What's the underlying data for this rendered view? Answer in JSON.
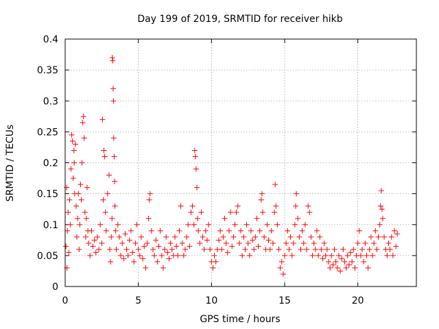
{
  "chart_data": {
    "type": "scatter",
    "title": "Day 199 of 2019, SRMTID for receiver hikb",
    "xlabel": "GPS time / hours",
    "ylabel": "SRMTID / TECUs",
    "xlim": [
      0,
      24
    ],
    "ylim": [
      0,
      0.4
    ],
    "x_ticks": [
      0,
      5,
      10,
      15,
      20
    ],
    "x_tick_labels": [
      "0",
      "5",
      "10",
      "15",
      "20"
    ],
    "y_ticks": [
      0,
      0.05,
      0.1,
      0.15,
      0.2,
      0.25,
      0.3,
      0.35,
      0.4
    ],
    "y_tick_labels": [
      "0",
      "0.05",
      "0.1",
      "0.15",
      "0.2",
      "0.25",
      "0.3",
      "0.35",
      "0.4"
    ],
    "grid": true,
    "marker": "+",
    "marker_color": "#ff0000",
    "series": [
      {
        "points": [
          [
            0.05,
            0.065
          ],
          [
            0.1,
            0.16
          ],
          [
            0.12,
            0.03
          ],
          [
            0.15,
            0.09
          ],
          [
            0.2,
            0.12
          ],
          [
            0.25,
            0.055
          ],
          [
            0.3,
            0.14
          ],
          [
            0.35,
            0.1
          ],
          [
            0.4,
            0.19
          ],
          [
            0.45,
            0.245
          ],
          [
            0.5,
            0.235
          ],
          [
            0.55,
            0.175
          ],
          [
            0.6,
            0.22
          ],
          [
            0.62,
            0.2
          ],
          [
            0.65,
            0.15
          ],
          [
            0.7,
            0.23
          ],
          [
            0.75,
            0.13
          ],
          [
            0.8,
            0.08
          ],
          [
            0.85,
            0.11
          ],
          [
            0.9,
            0.15
          ],
          [
            0.95,
            0.06
          ],
          [
            1.0,
            0.1
          ],
          [
            1.05,
            0.165
          ],
          [
            1.1,
            0.14
          ],
          [
            1.15,
            0.2
          ],
          [
            1.2,
            0.265
          ],
          [
            1.25,
            0.275
          ],
          [
            1.3,
            0.24
          ],
          [
            1.35,
            0.12
          ],
          [
            1.4,
            0.08
          ],
          [
            1.45,
            0.11
          ],
          [
            1.5,
            0.16
          ],
          [
            1.55,
            0.09
          ],
          [
            1.6,
            0.07
          ],
          [
            1.7,
            0.05
          ],
          [
            1.8,
            0.09
          ],
          [
            1.9,
            0.065
          ],
          [
            2.0,
            0.075
          ],
          [
            2.1,
            0.055
          ],
          [
            2.2,
            0.08
          ],
          [
            2.3,
            0.06
          ],
          [
            2.4,
            0.1
          ],
          [
            2.5,
            0.07
          ],
          [
            2.55,
            0.27
          ],
          [
            2.6,
            0.14
          ],
          [
            2.65,
            0.22
          ],
          [
            2.7,
            0.21
          ],
          [
            2.75,
            0.12
          ],
          [
            2.8,
            0.09
          ],
          [
            2.9,
            0.15
          ],
          [
            3.0,
            0.18
          ],
          [
            3.05,
            0.06
          ],
          [
            3.1,
            0.04
          ],
          [
            3.15,
            0.08
          ],
          [
            3.2,
            0.11
          ],
          [
            3.22,
            0.37
          ],
          [
            3.25,
            0.365
          ],
          [
            3.28,
            0.32
          ],
          [
            3.3,
            0.3
          ],
          [
            3.32,
            0.24
          ],
          [
            3.35,
            0.21
          ],
          [
            3.38,
            0.17
          ],
          [
            3.4,
            0.13
          ],
          [
            3.45,
            0.09
          ],
          [
            3.5,
            0.06
          ],
          [
            3.6,
            0.1
          ],
          [
            3.7,
            0.08
          ],
          [
            3.8,
            0.05
          ],
          [
            3.9,
            0.07
          ],
          [
            4.0,
            0.045
          ],
          [
            4.1,
            0.085
          ],
          [
            4.2,
            0.06
          ],
          [
            4.3,
            0.05
          ],
          [
            4.4,
            0.075
          ],
          [
            4.5,
            0.09
          ],
          [
            4.6,
            0.055
          ],
          [
            4.7,
            0.04
          ],
          [
            4.8,
            0.07
          ],
          [
            4.9,
            0.1
          ],
          [
            5.0,
            0.06
          ],
          [
            5.1,
            0.05
          ],
          [
            5.2,
            0.08
          ],
          [
            5.3,
            0.045
          ],
          [
            5.4,
            0.065
          ],
          [
            5.5,
            0.03
          ],
          [
            5.6,
            0.07
          ],
          [
            5.7,
            0.11
          ],
          [
            5.75,
            0.14
          ],
          [
            5.8,
            0.15
          ],
          [
            5.9,
            0.09
          ],
          [
            6.0,
            0.06
          ],
          [
            6.1,
            0.05
          ],
          [
            6.2,
            0.075
          ],
          [
            6.3,
            0.04
          ],
          [
            6.4,
            0.065
          ],
          [
            6.5,
            0.09
          ],
          [
            6.6,
            0.05
          ],
          [
            6.7,
            0.03
          ],
          [
            6.8,
            0.06
          ],
          [
            6.9,
            0.08
          ],
          [
            7.0,
            0.055
          ],
          [
            7.1,
            0.045
          ],
          [
            7.2,
            0.07
          ],
          [
            7.3,
            0.06
          ],
          [
            7.4,
            0.05
          ],
          [
            7.5,
            0.08
          ],
          [
            7.6,
            0.065
          ],
          [
            7.7,
            0.05
          ],
          [
            7.8,
            0.09
          ],
          [
            7.9,
            0.13
          ],
          [
            8.0,
            0.07
          ],
          [
            8.1,
            0.05
          ],
          [
            8.2,
            0.06
          ],
          [
            8.3,
            0.08
          ],
          [
            8.4,
            0.1
          ],
          [
            8.5,
            0.065
          ],
          [
            8.6,
            0.12
          ],
          [
            8.7,
            0.13
          ],
          [
            8.8,
            0.1
          ],
          [
            8.85,
            0.22
          ],
          [
            8.9,
            0.21
          ],
          [
            8.95,
            0.19
          ],
          [
            9.0,
            0.16
          ],
          [
            9.05,
            0.11
          ],
          [
            9.1,
            0.09
          ],
          [
            9.2,
            0.07
          ],
          [
            9.3,
            0.12
          ],
          [
            9.4,
            0.08
          ],
          [
            9.5,
            0.06
          ],
          [
            9.6,
            0.09
          ],
          [
            9.7,
            0.075
          ],
          [
            9.8,
            0.1
          ],
          [
            9.9,
            0.06
          ],
          [
            10.0,
            0.04
          ],
          [
            10.1,
            0.03
          ],
          [
            10.2,
            0.05
          ],
          [
            10.3,
            0.04
          ],
          [
            10.4,
            0.06
          ],
          [
            10.5,
            0.075
          ],
          [
            10.6,
            0.09
          ],
          [
            10.7,
            0.06
          ],
          [
            10.8,
            0.08
          ],
          [
            10.9,
            0.11
          ],
          [
            11.0,
            0.07
          ],
          [
            11.1,
            0.055
          ],
          [
            11.2,
            0.09
          ],
          [
            11.3,
            0.12
          ],
          [
            11.4,
            0.065
          ],
          [
            11.5,
            0.08
          ],
          [
            11.6,
            0.1
          ],
          [
            11.7,
            0.12
          ],
          [
            11.8,
            0.13
          ],
          [
            11.9,
            0.07
          ],
          [
            12.0,
            0.09
          ],
          [
            12.1,
            0.05
          ],
          [
            12.2,
            0.08
          ],
          [
            12.3,
            0.06
          ],
          [
            12.4,
            0.1
          ],
          [
            12.5,
            0.07
          ],
          [
            12.6,
            0.05
          ],
          [
            12.7,
            0.09
          ],
          [
            12.8,
            0.075
          ],
          [
            12.9,
            0.06
          ],
          [
            13.0,
            0.08
          ],
          [
            13.1,
            0.11
          ],
          [
            13.2,
            0.065
          ],
          [
            13.3,
            0.09
          ],
          [
            13.4,
            0.14
          ],
          [
            13.45,
            0.15
          ],
          [
            13.5,
            0.12
          ],
          [
            13.6,
            0.08
          ],
          [
            13.7,
            0.06
          ],
          [
            13.8,
            0.1
          ],
          [
            13.9,
            0.075
          ],
          [
            14.0,
            0.06
          ],
          [
            14.1,
            0.09
          ],
          [
            14.2,
            0.07
          ],
          [
            14.3,
            0.12
          ],
          [
            14.35,
            0.165
          ],
          [
            14.4,
            0.13
          ],
          [
            14.5,
            0.1
          ],
          [
            14.6,
            0.06
          ],
          [
            14.7,
            0.03
          ],
          [
            14.8,
            0.04
          ],
          [
            14.9,
            0.02
          ],
          [
            15.0,
            0.05
          ],
          [
            15.1,
            0.07
          ],
          [
            15.2,
            0.09
          ],
          [
            15.3,
            0.06
          ],
          [
            15.4,
            0.08
          ],
          [
            15.5,
            0.05
          ],
          [
            15.6,
            0.07
          ],
          [
            15.7,
            0.1
          ],
          [
            15.75,
            0.13
          ],
          [
            15.8,
            0.15
          ],
          [
            15.9,
            0.11
          ],
          [
            16.0,
            0.08
          ],
          [
            16.1,
            0.06
          ],
          [
            16.2,
            0.09
          ],
          [
            16.3,
            0.07
          ],
          [
            16.4,
            0.1
          ],
          [
            16.5,
            0.06
          ],
          [
            16.6,
            0.13
          ],
          [
            16.7,
            0.12
          ],
          [
            16.8,
            0.08
          ],
          [
            16.9,
            0.05
          ],
          [
            17.0,
            0.07
          ],
          [
            17.1,
            0.06
          ],
          [
            17.2,
            0.09
          ],
          [
            17.3,
            0.05
          ],
          [
            17.4,
            0.08
          ],
          [
            17.5,
            0.06
          ],
          [
            17.6,
            0.045
          ],
          [
            17.7,
            0.07
          ],
          [
            17.8,
            0.05
          ],
          [
            17.9,
            0.06
          ],
          [
            18.0,
            0.04
          ],
          [
            18.1,
            0.03
          ],
          [
            18.2,
            0.05
          ],
          [
            18.3,
            0.035
          ],
          [
            18.4,
            0.06
          ],
          [
            18.5,
            0.04
          ],
          [
            18.6,
            0.03
          ],
          [
            18.7,
            0.05
          ],
          [
            18.8,
            0.025
          ],
          [
            18.9,
            0.045
          ],
          [
            19.0,
            0.06
          ],
          [
            19.1,
            0.04
          ],
          [
            19.2,
            0.03
          ],
          [
            19.3,
            0.05
          ],
          [
            19.4,
            0.035
          ],
          [
            19.5,
            0.055
          ],
          [
            19.6,
            0.04
          ],
          [
            19.7,
            0.06
          ],
          [
            19.8,
            0.03
          ],
          [
            19.9,
            0.05
          ],
          [
            20.0,
            0.07
          ],
          [
            20.1,
            0.09
          ],
          [
            20.2,
            0.05
          ],
          [
            20.3,
            0.06
          ],
          [
            20.4,
            0.04
          ],
          [
            20.5,
            0.07
          ],
          [
            20.6,
            0.05
          ],
          [
            20.7,
            0.03
          ],
          [
            20.8,
            0.06
          ],
          [
            20.9,
            0.08
          ],
          [
            21.0,
            0.05
          ],
          [
            21.1,
            0.07
          ],
          [
            21.2,
            0.09
          ],
          [
            21.3,
            0.06
          ],
          [
            21.4,
            0.08
          ],
          [
            21.5,
            0.1
          ],
          [
            21.55,
            0.13
          ],
          [
            21.6,
            0.155
          ],
          [
            21.65,
            0.125
          ],
          [
            21.7,
            0.11
          ],
          [
            21.8,
            0.08
          ],
          [
            21.9,
            0.06
          ],
          [
            22.0,
            0.05
          ],
          [
            22.1,
            0.07
          ],
          [
            22.2,
            0.06
          ],
          [
            22.3,
            0.08
          ],
          [
            22.4,
            0.05
          ],
          [
            22.5,
            0.09
          ],
          [
            22.6,
            0.065
          ],
          [
            22.7,
            0.085
          ]
        ]
      }
    ]
  }
}
